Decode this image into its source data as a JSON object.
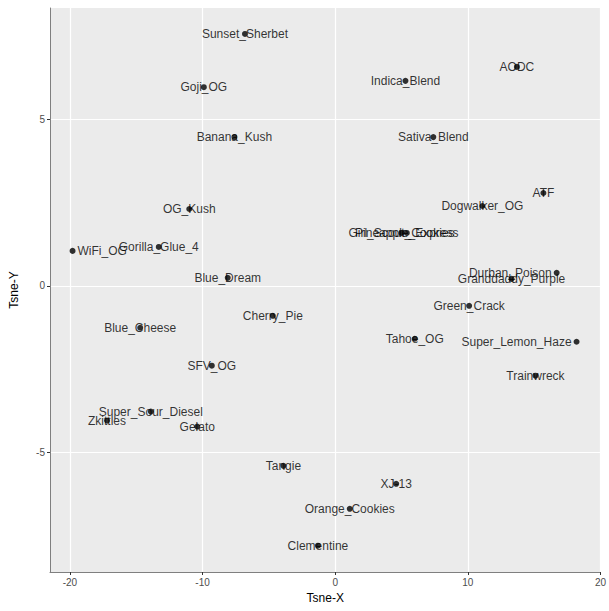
{
  "chart_data": {
    "type": "scatter",
    "xlabel": "Tsne-X",
    "ylabel": "Tsne-Y",
    "labels": [
      "Sunset_Sherbet",
      "Goji_OG",
      "Banana_Kush",
      "Indica_Blend",
      "AODC",
      "Sativa_Blend",
      "ATF",
      "Dogwalker_OG",
      "OG_Kush",
      "Girl_Scout_Cookies",
      "Pineapple_Express",
      "Gorilla_Glue_4",
      "WiFi_OG",
      "Blue_Dream",
      "Durban_Poison",
      "Granddaddy_Purple",
      "Green_Crack",
      "Cherry_Pie",
      "Blue_Cheese",
      "Tahoe_OG",
      "Super_Lemon_Haze",
      "Trainwreck",
      "SFV_OG",
      "Super_Sour_Diesel",
      "Zkittles",
      "Gelato",
      "Tangie",
      "XJ-13",
      "Orange_Cookies",
      "Clementine"
    ],
    "x": [
      -6.8,
      -9.9,
      -7.6,
      5.3,
      13.7,
      7.4,
      15.7,
      11.1,
      -11.0,
      5.0,
      5.4,
      -13.3,
      -19.8,
      -8.1,
      16.7,
      13.3,
      10.1,
      -4.7,
      -14.7,
      6.0,
      18.2,
      15.1,
      -9.3,
      -13.9,
      -17.2,
      -10.4,
      -3.9,
      4.6,
      1.1,
      -1.3
    ],
    "y": [
      7.57,
      5.97,
      4.47,
      6.16,
      6.58,
      4.47,
      2.79,
      2.4,
      2.31,
      1.59,
      1.59,
      1.17,
      1.05,
      0.24,
      0.39,
      0.21,
      -0.6,
      -0.9,
      -1.26,
      -1.59,
      -1.68,
      -2.7,
      -2.4,
      -3.78,
      -4.05,
      -4.23,
      -5.41,
      -5.95,
      -6.7,
      -7.81
    ],
    "color": "#000000",
    "xlim": [
      -21.5,
      20
    ],
    "xticks": [
      -20,
      -10,
      0,
      10,
      20
    ],
    "ylim": [
      -8.6,
      8.35
    ],
    "yticks": [
      -5,
      0,
      5
    ],
    "grid": true
  }
}
